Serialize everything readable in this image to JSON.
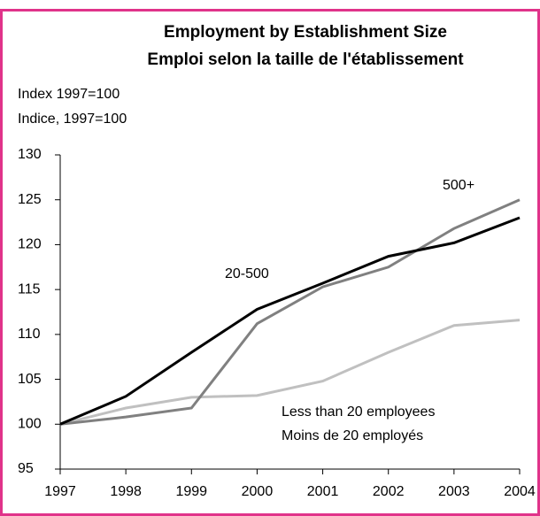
{
  "chart_data": {
    "type": "line",
    "title": [
      "Employment by Establishment Size",
      "Emploi selon la taille de l'établissement"
    ],
    "y_label": [
      "Index 1997=100",
      "Indice, 1997=100"
    ],
    "x": [
      1997,
      1998,
      1999,
      2000,
      2001,
      2002,
      2003,
      2004
    ],
    "xlim": [
      1997,
      2004
    ],
    "xticks": [
      1997,
      1998,
      1999,
      2000,
      2001,
      2002,
      2003,
      2004
    ],
    "ylim": [
      95,
      130
    ],
    "yticks": [
      95,
      100,
      105,
      110,
      115,
      120,
      125,
      130
    ],
    "series": [
      {
        "name": [
          "20-500"
        ],
        "color": "#000000",
        "values": [
          100,
          103.1,
          108,
          112.8,
          115.7,
          118.7,
          120.2,
          123
        ]
      },
      {
        "name": [
          "500+"
        ],
        "color": "#808080",
        "values": [
          100,
          100.8,
          101.8,
          111.2,
          115.3,
          117.5,
          121.8,
          125
        ]
      },
      {
        "name": [
          "Less than 20 employees",
          "Moins de 20 employés"
        ],
        "color": "#c0c0c0",
        "values": [
          100,
          101.8,
          103,
          103.2,
          104.8,
          108,
          111,
          111.6
        ]
      }
    ]
  }
}
